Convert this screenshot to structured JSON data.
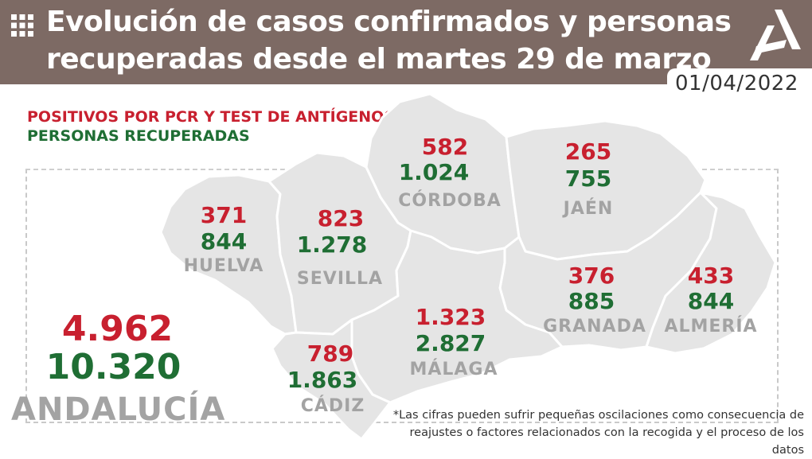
{
  "header": {
    "title_line1": "Evolución de casos confirmados y personas",
    "title_line2": "recuperadas desde el martes 29 de marzo",
    "date": "01/04/2022",
    "bg_color": "#7d6a64"
  },
  "legend": {
    "positives_label": "POSITIVOS POR PCR Y TEST DE ANTÍGENOS",
    "recovered_label": "PERSONAS RECUPERADAS",
    "positives_color": "#c8202f",
    "recovered_color": "#1f6e34"
  },
  "provinces": [
    {
      "name": "HUELVA",
      "positives": "371",
      "recovered": "844"
    },
    {
      "name": "SEVILLA",
      "positives": "823",
      "recovered": "1.278"
    },
    {
      "name": "CÓRDOBA",
      "positives": "582",
      "recovered": "1.024"
    },
    {
      "name": "JAÉN",
      "positives": "265",
      "recovered": "755"
    },
    {
      "name": "GRANADA",
      "positives": "376",
      "recovered": "885"
    },
    {
      "name": "ALMERÍA",
      "positives": "433",
      "recovered": "844"
    },
    {
      "name": "MÁLAGA",
      "positives": "1.323",
      "recovered": "2.827"
    },
    {
      "name": "CÁDIZ",
      "positives": "789",
      "recovered": "1.863"
    }
  ],
  "region": {
    "name": "ANDALUCÍA",
    "positives": "4.962",
    "recovered": "10.320"
  },
  "footnote": {
    "line1": "*Las cifras pueden sufrir pequeñas oscilaciones como consecuencia de",
    "line2": "reajustes o factores relacionados con la recogida y el proceso de los datos"
  },
  "icons": [
    "grid-icon",
    "junta-andalucia-logo"
  ]
}
